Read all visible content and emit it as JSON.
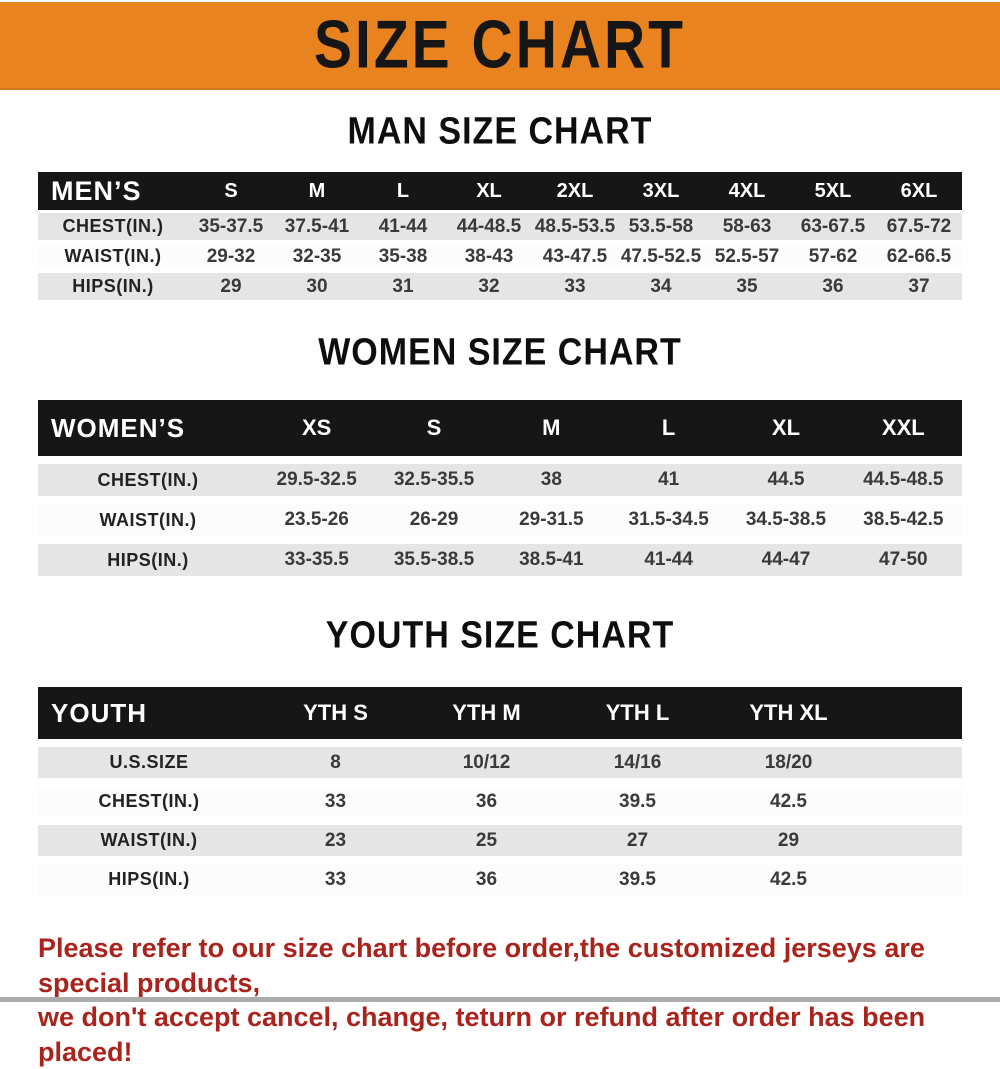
{
  "banner": {
    "title": "SIZE CHART",
    "bg_color": "#E8831F",
    "text_color": "#161616"
  },
  "colors": {
    "table_header_bg": "#161616",
    "table_header_text": "#FFFFFF",
    "row_shaded_bg": "#E5E5E5",
    "row_plain_bg": "#FCFCFC",
    "footer_text": "#A8241C"
  },
  "chart_data": [
    {
      "type": "table",
      "title": "MAN SIZE CHART",
      "header_label": "MEN’S",
      "columns": [
        "S",
        "M",
        "L",
        "XL",
        "2XL",
        "3XL",
        "4XL",
        "5XL",
        "6XL"
      ],
      "rows": [
        {
          "label": "CHEST(IN.)",
          "cells": [
            "35-37.5",
            "37.5-41",
            "41-44",
            "44-48.5",
            "48.5-53.5",
            "53.5-58",
            "58-63",
            "63-67.5",
            "67.5-72"
          ]
        },
        {
          "label": "WAIST(IN.)",
          "cells": [
            "29-32",
            "32-35",
            "35-38",
            "38-43",
            "43-47.5",
            "47.5-52.5",
            "52.5-57",
            "57-62",
            "62-66.5"
          ]
        },
        {
          "label": "HIPS(IN.)",
          "cells": [
            "29",
            "30",
            "31",
            "32",
            "33",
            "34",
            "35",
            "36",
            "37"
          ]
        }
      ]
    },
    {
      "type": "table",
      "title": "WOMEN SIZE CHART",
      "header_label": "WOMEN’S",
      "columns": [
        "XS",
        "S",
        "M",
        "L",
        "XL",
        "XXL"
      ],
      "rows": [
        {
          "label": "CHEST(IN.)",
          "cells": [
            "29.5-32.5",
            "32.5-35.5",
            "38",
            "41",
            "44.5",
            "44.5-48.5"
          ]
        },
        {
          "label": "WAIST(IN.)",
          "cells": [
            "23.5-26",
            "26-29",
            "29-31.5",
            "31.5-34.5",
            "34.5-38.5",
            "38.5-42.5"
          ]
        },
        {
          "label": "HIPS(IN.)",
          "cells": [
            "33-35.5",
            "35.5-38.5",
            "38.5-41",
            "41-44",
            "44-47",
            "47-50"
          ]
        }
      ]
    },
    {
      "type": "table",
      "title": "YOUTH SIZE CHART",
      "header_label": "YOUTH",
      "columns": [
        "YTH S",
        "YTH M",
        "YTH L",
        "YTH XL"
      ],
      "rows": [
        {
          "label": "U.S.SIZE",
          "cells": [
            "8",
            "10/12",
            "14/16",
            "18/20"
          ]
        },
        {
          "label": "CHEST(IN.)",
          "cells": [
            "33",
            "36",
            "39.5",
            "42.5"
          ]
        },
        {
          "label": "WAIST(IN.)",
          "cells": [
            "23",
            "25",
            "27",
            "29"
          ]
        },
        {
          "label": "HIPS(IN.)",
          "cells": [
            "33",
            "36",
            "39.5",
            "42.5"
          ]
        }
      ]
    }
  ],
  "footer": {
    "line1": "Please refer to our size chart before order,the customized jerseys are special products,",
    "line2": "we don't accept cancel, change, teturn or refund after order has been placed!"
  }
}
